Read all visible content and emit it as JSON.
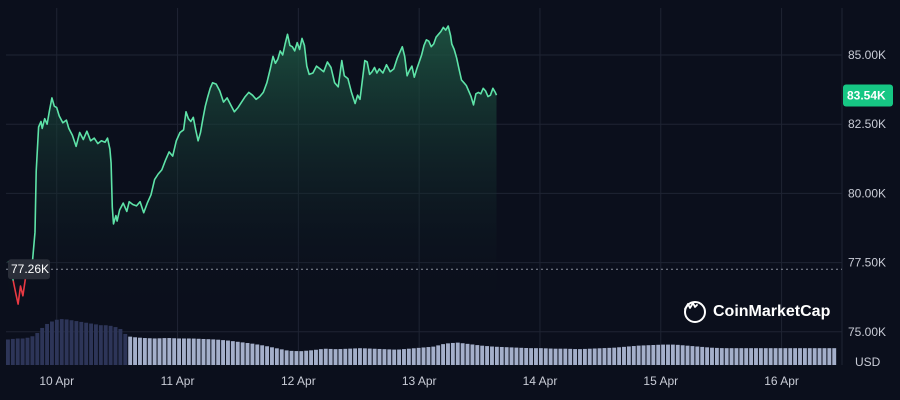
{
  "brand": {
    "name": "CoinMarketCap",
    "logo_icon": "coinmarketcap-logo-icon"
  },
  "colors": {
    "background": "#0b0f1c",
    "line_up": "#5ee3a8",
    "line_down": "#ea3943",
    "area_top": "#1f5a45",
    "current_tag_bg": "#16c784",
    "open_tag_bg": "#2a2e39",
    "volume_early": "#2d3558",
    "volume_late": "#a4afca"
  },
  "chart_data": {
    "type": "area",
    "unit_label": "USD",
    "grid": true,
    "y_axis_position": "right",
    "ylim": [
      73800,
      86700
    ],
    "y_ticks": [
      {
        "value": 75000,
        "label": "75.00K"
      },
      {
        "value": 77500,
        "label": "77.50K"
      },
      {
        "value": 80000,
        "label": "80.00K"
      },
      {
        "value": 82500,
        "label": "82.50K"
      },
      {
        "value": 85000,
        "label": "85.00K"
      }
    ],
    "x_ticks": [
      {
        "value": 1,
        "label": "10 Apr"
      },
      {
        "value": 2,
        "label": "11 Apr"
      },
      {
        "value": 3,
        "label": "12 Apr"
      },
      {
        "value": 4,
        "label": "13 Apr"
      },
      {
        "value": 5,
        "label": "14 Apr"
      },
      {
        "value": 6,
        "label": "15 Apr"
      },
      {
        "value": 7,
        "label": "16 Apr"
      }
    ],
    "xlim": [
      0.58,
      7.5
    ],
    "open_price": {
      "value": 77260,
      "label": "77.26K"
    },
    "current_price": {
      "value": 83540,
      "label": "83.54K"
    },
    "price_series": [
      [
        0.6,
        77550
      ],
      [
        0.62,
        77300
      ],
      [
        0.64,
        76850
      ],
      [
        0.66,
        76400
      ],
      [
        0.68,
        76000
      ],
      [
        0.7,
        76650
      ],
      [
        0.72,
        76300
      ],
      [
        0.74,
        76900
      ],
      [
        0.76,
        77100
      ],
      [
        0.78,
        77300
      ],
      [
        0.8,
        77600
      ],
      [
        0.82,
        78600
      ],
      [
        0.83,
        80800
      ],
      [
        0.85,
        82400
      ],
      [
        0.87,
        82600
      ],
      [
        0.88,
        82350
      ],
      [
        0.9,
        82700
      ],
      [
        0.92,
        82500
      ],
      [
        0.94,
        83000
      ],
      [
        0.96,
        83450
      ],
      [
        0.98,
        83150
      ],
      [
        1.0,
        83100
      ],
      [
        1.02,
        82800
      ],
      [
        1.05,
        82550
      ],
      [
        1.08,
        82650
      ],
      [
        1.1,
        82350
      ],
      [
        1.13,
        82100
      ],
      [
        1.16,
        81700
      ],
      [
        1.19,
        82200
      ],
      [
        1.22,
        81950
      ],
      [
        1.25,
        82250
      ],
      [
        1.28,
        81900
      ],
      [
        1.31,
        82000
      ],
      [
        1.34,
        81800
      ],
      [
        1.37,
        81900
      ],
      [
        1.4,
        81850
      ],
      [
        1.42,
        82000
      ],
      [
        1.44,
        81600
      ],
      [
        1.45,
        81100
      ],
      [
        1.46,
        79500
      ],
      [
        1.47,
        78900
      ],
      [
        1.49,
        79200
      ],
      [
        1.5,
        79000
      ],
      [
        1.52,
        79400
      ],
      [
        1.55,
        79650
      ],
      [
        1.58,
        79350
      ],
      [
        1.6,
        79700
      ],
      [
        1.63,
        79600
      ],
      [
        1.66,
        79550
      ],
      [
        1.69,
        79700
      ],
      [
        1.72,
        79300
      ],
      [
        1.75,
        79650
      ],
      [
        1.78,
        79950
      ],
      [
        1.81,
        80500
      ],
      [
        1.84,
        80700
      ],
      [
        1.87,
        80850
      ],
      [
        1.9,
        81200
      ],
      [
        1.93,
        81500
      ],
      [
        1.96,
        81350
      ],
      [
        1.99,
        81900
      ],
      [
        2.02,
        82200
      ],
      [
        2.05,
        82300
      ],
      [
        2.07,
        82950
      ],
      [
        2.09,
        82700
      ],
      [
        2.11,
        82600
      ],
      [
        2.13,
        82750
      ],
      [
        2.15,
        82300
      ],
      [
        2.17,
        81900
      ],
      [
        2.19,
        82200
      ],
      [
        2.21,
        82700
      ],
      [
        2.23,
        83150
      ],
      [
        2.25,
        83500
      ],
      [
        2.27,
        83800
      ],
      [
        2.29,
        84000
      ],
      [
        2.32,
        83950
      ],
      [
        2.35,
        83700
      ],
      [
        2.38,
        83300
      ],
      [
        2.41,
        83450
      ],
      [
        2.44,
        83200
      ],
      [
        2.47,
        82950
      ],
      [
        2.5,
        83100
      ],
      [
        2.53,
        83300
      ],
      [
        2.56,
        83500
      ],
      [
        2.59,
        83650
      ],
      [
        2.62,
        83550
      ],
      [
        2.65,
        83400
      ],
      [
        2.68,
        83500
      ],
      [
        2.71,
        83650
      ],
      [
        2.74,
        84000
      ],
      [
        2.77,
        84550
      ],
      [
        2.79,
        84950
      ],
      [
        2.81,
        84700
      ],
      [
        2.83,
        84850
      ],
      [
        2.85,
        85150
      ],
      [
        2.87,
        85000
      ],
      [
        2.89,
        85400
      ],
      [
        2.91,
        85750
      ],
      [
        2.93,
        85350
      ],
      [
        2.95,
        85300
      ],
      [
        2.97,
        85150
      ],
      [
        2.99,
        85450
      ],
      [
        3.01,
        85200
      ],
      [
        3.03,
        85600
      ],
      [
        3.05,
        85350
      ],
      [
        3.07,
        84600
      ],
      [
        3.09,
        84300
      ],
      [
        3.12,
        84350
      ],
      [
        3.15,
        84600
      ],
      [
        3.18,
        84500
      ],
      [
        3.21,
        84400
      ],
      [
        3.24,
        84750
      ],
      [
        3.27,
        84550
      ],
      [
        3.3,
        84000
      ],
      [
        3.33,
        83850
      ],
      [
        3.36,
        84800
      ],
      [
        3.38,
        84250
      ],
      [
        3.41,
        84150
      ],
      [
        3.44,
        83650
      ],
      [
        3.47,
        83250
      ],
      [
        3.49,
        83550
      ],
      [
        3.51,
        83400
      ],
      [
        3.53,
        84100
      ],
      [
        3.55,
        84800
      ],
      [
        3.57,
        84750
      ],
      [
        3.59,
        84300
      ],
      [
        3.61,
        84400
      ],
      [
        3.63,
        84550
      ],
      [
        3.65,
        84350
      ],
      [
        3.67,
        84500
      ],
      [
        3.7,
        84350
      ],
      [
        3.73,
        84650
      ],
      [
        3.76,
        84400
      ],
      [
        3.79,
        84500
      ],
      [
        3.82,
        84900
      ],
      [
        3.84,
        85100
      ],
      [
        3.86,
        85300
      ],
      [
        3.88,
        84950
      ],
      [
        3.9,
        84250
      ],
      [
        3.92,
        84450
      ],
      [
        3.94,
        84600
      ],
      [
        3.96,
        84200
      ],
      [
        3.98,
        84500
      ],
      [
        4.0,
        84750
      ],
      [
        4.02,
        85000
      ],
      [
        4.04,
        85350
      ],
      [
        4.06,
        85550
      ],
      [
        4.08,
        85500
      ],
      [
        4.1,
        85300
      ],
      [
        4.12,
        85400
      ],
      [
        4.14,
        85650
      ],
      [
        4.16,
        85750
      ],
      [
        4.18,
        85850
      ],
      [
        4.2,
        86000
      ],
      [
        4.22,
        85900
      ],
      [
        4.24,
        86050
      ],
      [
        4.26,
        85700
      ],
      [
        4.27,
        85400
      ],
      [
        4.29,
        85200
      ],
      [
        4.31,
        84900
      ],
      [
        4.33,
        84500
      ],
      [
        4.35,
        84100
      ],
      [
        4.37,
        84000
      ],
      [
        4.39,
        83900
      ],
      [
        4.41,
        83700
      ],
      [
        4.43,
        83500
      ],
      [
        4.45,
        83200
      ],
      [
        4.47,
        83600
      ],
      [
        4.49,
        83650
      ],
      [
        4.51,
        83600
      ],
      [
        4.53,
        83800
      ],
      [
        4.55,
        83700
      ],
      [
        4.57,
        83500
      ],
      [
        4.59,
        83550
      ],
      [
        4.61,
        83800
      ],
      [
        4.63,
        83650
      ],
      [
        4.64,
        83550
      ]
    ],
    "volume_series": [
      [
        0.58,
        0.5
      ],
      [
        0.65,
        0.52
      ],
      [
        0.72,
        0.52
      ],
      [
        0.78,
        0.56
      ],
      [
        0.82,
        0.62
      ],
      [
        0.86,
        0.72
      ],
      [
        0.9,
        0.8
      ],
      [
        0.95,
        0.86
      ],
      [
        1.0,
        0.9
      ],
      [
        1.05,
        0.9
      ],
      [
        1.1,
        0.88
      ],
      [
        1.15,
        0.86
      ],
      [
        1.2,
        0.84
      ],
      [
        1.25,
        0.82
      ],
      [
        1.3,
        0.8
      ],
      [
        1.35,
        0.78
      ],
      [
        1.4,
        0.78
      ],
      [
        1.45,
        0.76
      ],
      [
        1.5,
        0.72
      ],
      [
        1.53,
        0.68
      ],
      [
        1.56,
        0.58
      ],
      [
        1.6,
        0.55
      ],
      [
        1.7,
        0.53
      ],
      [
        1.8,
        0.52
      ],
      [
        1.9,
        0.53
      ],
      [
        2.0,
        0.52
      ],
      [
        2.1,
        0.52
      ],
      [
        2.2,
        0.51
      ],
      [
        2.3,
        0.5
      ],
      [
        2.4,
        0.48
      ],
      [
        2.5,
        0.45
      ],
      [
        2.6,
        0.42
      ],
      [
        2.7,
        0.38
      ],
      [
        2.8,
        0.33
      ],
      [
        2.9,
        0.28
      ],
      [
        3.0,
        0.27
      ],
      [
        3.1,
        0.29
      ],
      [
        3.2,
        0.32
      ],
      [
        3.3,
        0.31
      ],
      [
        3.4,
        0.32
      ],
      [
        3.5,
        0.33
      ],
      [
        3.6,
        0.32
      ],
      [
        3.7,
        0.31
      ],
      [
        3.8,
        0.3
      ],
      [
        3.9,
        0.32
      ],
      [
        4.0,
        0.34
      ],
      [
        4.1,
        0.36
      ],
      [
        4.2,
        0.42
      ],
      [
        4.3,
        0.44
      ],
      [
        4.4,
        0.41
      ],
      [
        4.5,
        0.38
      ],
      [
        4.6,
        0.36
      ],
      [
        4.7,
        0.35
      ],
      [
        4.8,
        0.34
      ],
      [
        4.9,
        0.33
      ],
      [
        5.0,
        0.33
      ],
      [
        5.1,
        0.32
      ],
      [
        5.2,
        0.32
      ],
      [
        5.3,
        0.31
      ],
      [
        5.4,
        0.32
      ],
      [
        5.5,
        0.33
      ],
      [
        5.6,
        0.34
      ],
      [
        5.7,
        0.36
      ],
      [
        5.8,
        0.38
      ],
      [
        5.9,
        0.39
      ],
      [
        6.0,
        0.4
      ],
      [
        6.1,
        0.4
      ],
      [
        6.2,
        0.38
      ],
      [
        6.3,
        0.36
      ],
      [
        6.4,
        0.34
      ],
      [
        6.5,
        0.33
      ],
      [
        6.6,
        0.33
      ],
      [
        6.7,
        0.33
      ],
      [
        6.8,
        0.33
      ],
      [
        6.9,
        0.33
      ],
      [
        7.0,
        0.33
      ],
      [
        7.1,
        0.33
      ],
      [
        7.2,
        0.33
      ],
      [
        7.3,
        0.33
      ],
      [
        7.4,
        0.33
      ],
      [
        7.46,
        0.33
      ]
    ],
    "volume_split_x": 1.56
  }
}
